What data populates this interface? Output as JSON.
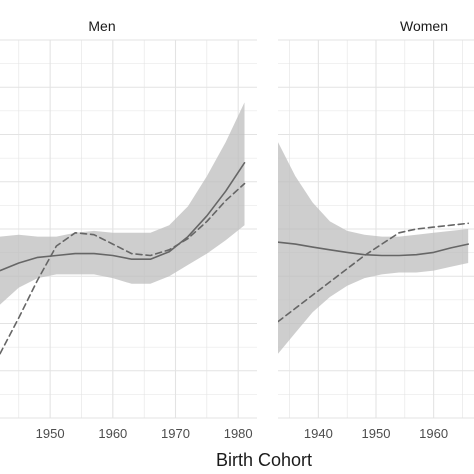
{
  "chart_data": {
    "type": "line",
    "title": "",
    "xlabel": "Birth Cohort",
    "ylabel": "",
    "grid": true,
    "legend": "none",
    "colors": {
      "line": "#666666",
      "band": "#bdbdbd",
      "grid": "#e3e3e3"
    },
    "panels": [
      {
        "title": "Men",
        "xlim": [
          1942,
          1983
        ],
        "xticks": [
          1950,
          1960,
          1970,
          1980
        ],
        "ylim": [
          0,
          1
        ],
        "series": [
          {
            "style": "solid",
            "x": [
              1942,
              1945,
              1948,
              1951,
              1954,
              1957,
              1960,
              1963,
              1966,
              1969,
              1972,
              1975,
              1978,
              1981
            ],
            "y": [
              0.39,
              0.41,
              0.425,
              0.43,
              0.435,
              0.435,
              0.43,
              0.42,
              0.42,
              0.44,
              0.48,
              0.535,
              0.6,
              0.675
            ]
          },
          {
            "style": "dashed",
            "x": [
              1942,
              1945,
              1948,
              1951,
              1954,
              1957,
              1960,
              1963,
              1966,
              1969,
              1972,
              1975,
              1978,
              1981
            ],
            "y": [
              0.17,
              0.265,
              0.365,
              0.455,
              0.49,
              0.485,
              0.46,
              0.435,
              0.43,
              0.445,
              0.475,
              0.52,
              0.575,
              0.62
            ]
          }
        ],
        "band": {
          "x": [
            1942,
            1945,
            1948,
            1951,
            1954,
            1957,
            1960,
            1963,
            1966,
            1969,
            1972,
            1975,
            1978,
            1981
          ],
          "lower": [
            0.3,
            0.345,
            0.37,
            0.38,
            0.38,
            0.38,
            0.37,
            0.355,
            0.355,
            0.375,
            0.405,
            0.435,
            0.47,
            0.51
          ],
          "upper": [
            0.48,
            0.485,
            0.48,
            0.48,
            0.49,
            0.495,
            0.49,
            0.49,
            0.49,
            0.51,
            0.56,
            0.64,
            0.73,
            0.835
          ]
        }
      },
      {
        "title": "Women",
        "xlim": [
          1933,
          1967
        ],
        "xticks": [
          1940,
          1950,
          1960
        ],
        "ylim": [
          0,
          1
        ],
        "series": [
          {
            "style": "solid",
            "x": [
              1933,
              1936,
              1939,
              1942,
              1945,
              1948,
              1951,
              1954,
              1957,
              1960,
              1963,
              1966
            ],
            "y": [
              0.465,
              0.46,
              0.452,
              0.445,
              0.438,
              0.432,
              0.43,
              0.43,
              0.432,
              0.438,
              0.45,
              0.46
            ]
          },
          {
            "style": "dashed",
            "x": [
              1933,
              1936,
              1939,
              1942,
              1945,
              1948,
              1951,
              1954,
              1957,
              1960,
              1963,
              1966
            ],
            "y": [
              0.255,
              0.29,
              0.325,
              0.36,
              0.395,
              0.43,
              0.46,
              0.49,
              0.5,
              0.505,
              0.51,
              0.515
            ]
          }
        ],
        "band": {
          "x": [
            1933,
            1936,
            1939,
            1942,
            1945,
            1948,
            1951,
            1954,
            1957,
            1960,
            1963,
            1966
          ],
          "lower": [
            0.17,
            0.225,
            0.28,
            0.32,
            0.35,
            0.37,
            0.38,
            0.385,
            0.385,
            0.39,
            0.4,
            0.41
          ],
          "upper": [
            0.73,
            0.64,
            0.57,
            0.52,
            0.495,
            0.485,
            0.48,
            0.48,
            0.485,
            0.49,
            0.495,
            0.5
          ]
        }
      }
    ]
  }
}
